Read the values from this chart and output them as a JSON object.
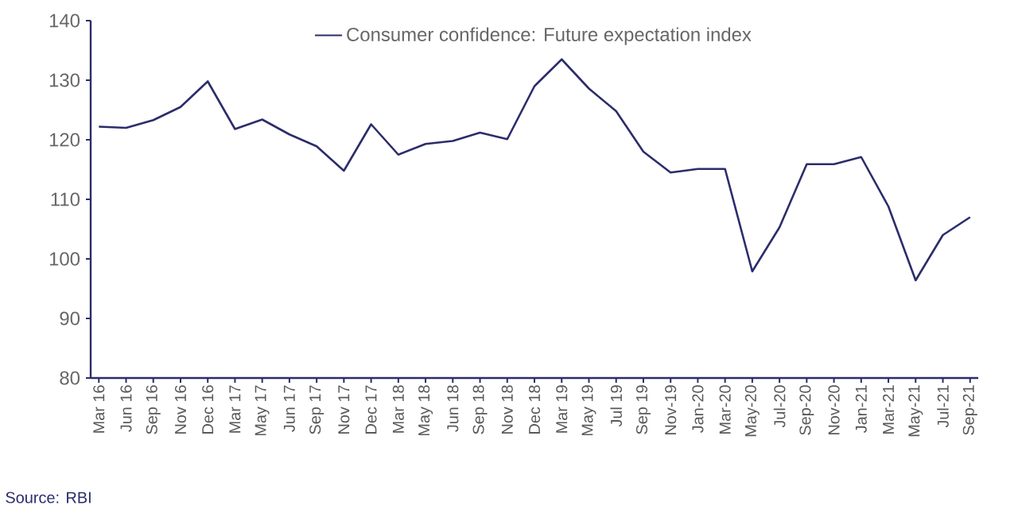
{
  "chart_data": {
    "type": "line",
    "categories": [
      "Mar 16",
      "Jun 16",
      "Sep 16",
      "Nov 16",
      "Dec 16",
      "Mar 17",
      "May 17",
      "Jun 17",
      "Sep 17",
      "Nov 17",
      "Dec 17",
      "Mar 18",
      "May 18",
      "Jun 18",
      "Sep 18",
      "Nov 18",
      "Dec 18",
      "Mar 19",
      "May 19",
      "Jul 19",
      "Sep 19",
      "Nov-19",
      "Jan-20",
      "Mar-20",
      "May-20",
      "Jul-20",
      "Sep-20",
      "Nov-20",
      "Jan-21",
      "Mar-21",
      "May-21",
      "Jul-21",
      "Sep-21"
    ],
    "series": [
      {
        "name": "Consumer confidence: Future expectation index",
        "color": "#2b2d6a",
        "values": [
          122.2,
          122.0,
          123.3,
          125.5,
          129.8,
          121.8,
          123.4,
          120.9,
          118.9,
          114.8,
          122.6,
          117.5,
          119.3,
          119.8,
          121.2,
          120.1,
          129.0,
          133.5,
          128.6,
          124.8,
          118.0,
          114.5,
          115.1,
          115.1,
          97.9,
          105.3,
          115.9,
          115.9,
          117.1,
          108.8,
          96.4,
          104.0,
          107.0
        ]
      }
    ],
    "ylim": [
      80,
      140
    ],
    "yticks": [
      80,
      90,
      100,
      110,
      120,
      130,
      140
    ],
    "grid": false,
    "legend": "top",
    "marker": "none",
    "line_style": "solid",
    "annotations": [
      "Source: RBI"
    ]
  }
}
